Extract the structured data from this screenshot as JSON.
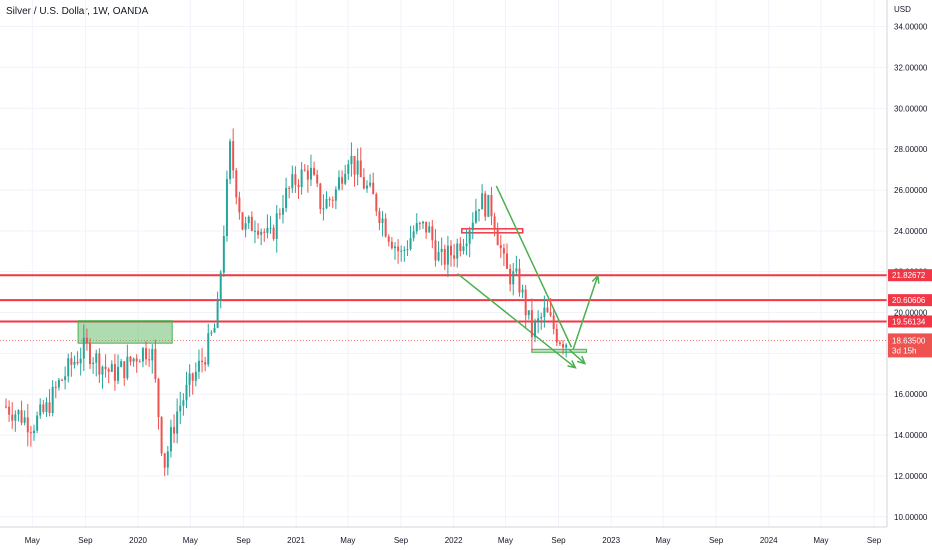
{
  "title": "Silver / U.S. Dollar, 1W, OANDA",
  "chart_data": {
    "type": "candlestick",
    "currency_label": "USD",
    "y_ticks": [
      10,
      12,
      14,
      16,
      18,
      20,
      22,
      24,
      26,
      28,
      30,
      32,
      34
    ],
    "y_tick_labels": [
      "10.00000",
      "12.00000",
      "14.00000",
      "16.00000",
      "18.00000",
      "20.00000",
      "22.00000",
      "24.00000",
      "26.00000",
      "28.00000",
      "30.00000",
      "32.00000",
      "34.00000"
    ],
    "ylim": [
      9.5,
      35.3
    ],
    "x_ticks": [
      "May",
      "Sep",
      "2020",
      "May",
      "Sep",
      "2021",
      "May",
      "Sep",
      "2022",
      "May",
      "Sep",
      "2023",
      "May",
      "Sep",
      "2024",
      "May",
      "Sep"
    ],
    "x_range": [
      "2019-03",
      "2024-10"
    ],
    "grid": true,
    "colors": {
      "up": "#26a69a",
      "down": "#ef5350",
      "level": "#f23645",
      "annotation": "#4caf50"
    },
    "horizontal_levels": [
      {
        "value": 21.82672,
        "label": "21.82672"
      },
      {
        "value": 20.60606,
        "label": "20.60606"
      },
      {
        "value": 19.56134,
        "label": "19.56134"
      }
    ],
    "last_price": {
      "value": 18.635,
      "label": "18.63500",
      "countdown": "3d 15h"
    },
    "price_path": [
      {
        "date": "2019-03",
        "value": 15.4
      },
      {
        "date": "2019-04",
        "value": 15.0
      },
      {
        "date": "2019-05",
        "value": 14.5
      },
      {
        "date": "2019-06",
        "value": 15.2
      },
      {
        "date": "2019-07",
        "value": 16.5
      },
      {
        "date": "2019-08",
        "value": 17.5
      },
      {
        "date": "2019-09",
        "value": 18.3
      },
      {
        "date": "2019-10",
        "value": 17.6
      },
      {
        "date": "2019-11",
        "value": 17.0
      },
      {
        "date": "2019-12",
        "value": 17.3
      },
      {
        "date": "2020-01",
        "value": 18.0
      },
      {
        "date": "2020-02",
        "value": 18.3
      },
      {
        "date": "2020-03",
        "value": 12.5
      },
      {
        "date": "2020-04",
        "value": 15.2
      },
      {
        "date": "2020-05",
        "value": 16.5
      },
      {
        "date": "2020-06",
        "value": 17.8
      },
      {
        "date": "2020-07",
        "value": 19.5
      },
      {
        "date": "2020-08",
        "value": 28.0
      },
      {
        "date": "2020-09",
        "value": 24.0
      },
      {
        "date": "2020-10",
        "value": 24.5
      },
      {
        "date": "2020-11",
        "value": 23.5
      },
      {
        "date": "2020-12",
        "value": 25.5
      },
      {
        "date": "2021-01",
        "value": 26.5
      },
      {
        "date": "2021-02",
        "value": 27.0
      },
      {
        "date": "2021-03",
        "value": 25.2
      },
      {
        "date": "2021-04",
        "value": 25.8
      },
      {
        "date": "2021-05",
        "value": 27.8
      },
      {
        "date": "2021-06",
        "value": 26.5
      },
      {
        "date": "2021-07",
        "value": 25.5
      },
      {
        "date": "2021-08",
        "value": 24.0
      },
      {
        "date": "2021-09",
        "value": 22.8
      },
      {
        "date": "2021-10",
        "value": 24.0
      },
      {
        "date": "2021-11",
        "value": 24.2
      },
      {
        "date": "2021-12",
        "value": 22.5
      },
      {
        "date": "2022-01",
        "value": 23.0
      },
      {
        "date": "2022-02",
        "value": 24.0
      },
      {
        "date": "2022-03",
        "value": 25.5
      },
      {
        "date": "2022-04",
        "value": 25.0
      },
      {
        "date": "2022-05",
        "value": 22.0
      },
      {
        "date": "2022-06",
        "value": 21.5
      },
      {
        "date": "2022-07",
        "value": 19.0
      },
      {
        "date": "2022-08",
        "value": 20.0
      },
      {
        "date": "2022-09",
        "value": 18.8
      },
      {
        "date": "2022-09-20",
        "value": 18.6
      }
    ]
  }
}
